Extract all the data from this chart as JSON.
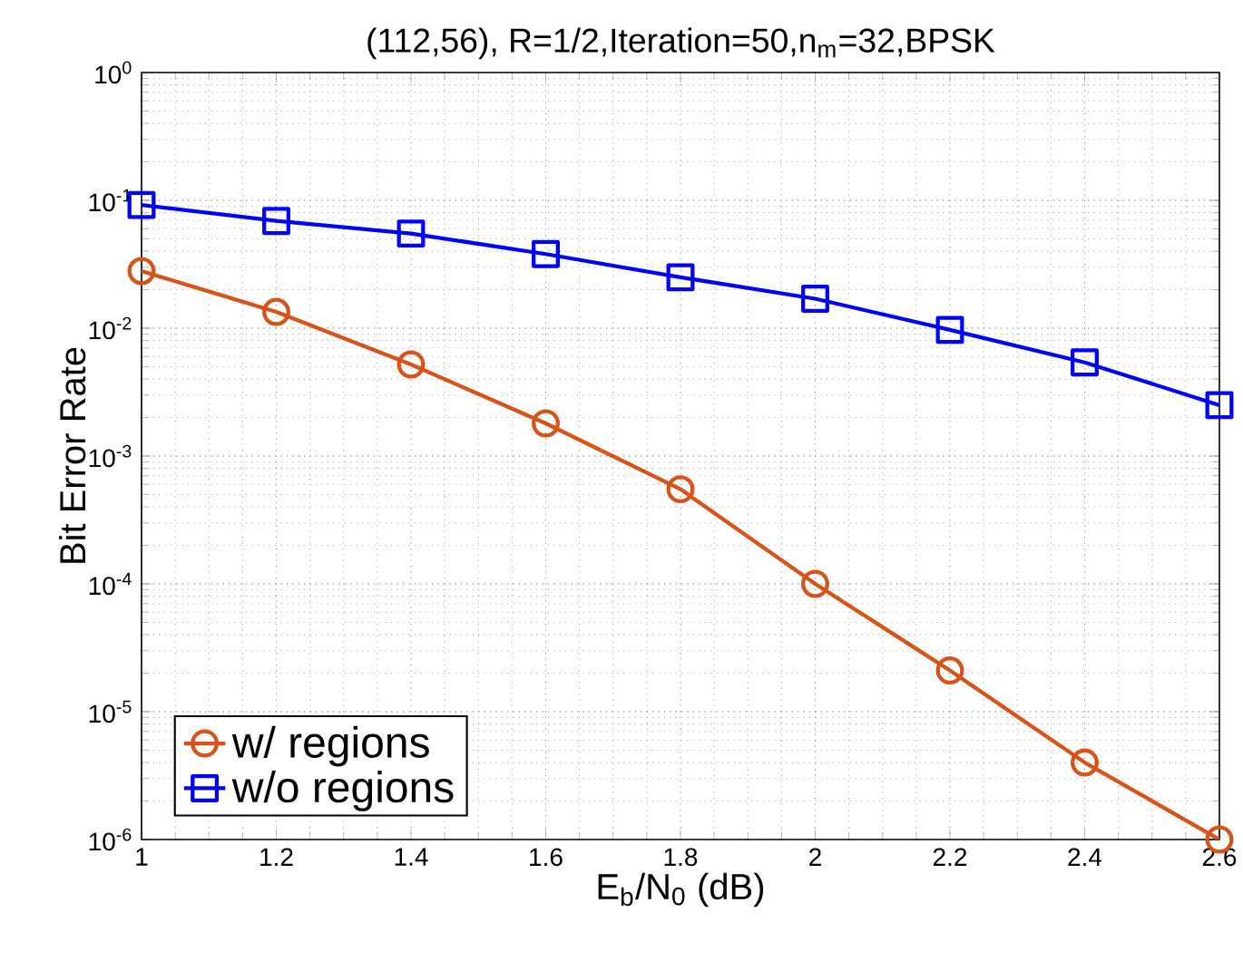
{
  "chart_data": {
    "type": "line",
    "title": "(112,56), R=1/2,Iteration=50,n$_{m}$=32,BPSK",
    "xlabel": "E$_{b}$/N$_{0}$ (dB)",
    "ylabel": "Bit Error Rate",
    "x": [
      1,
      1.2,
      1.4,
      1.6,
      1.8,
      2,
      2.2,
      2.4,
      2.6
    ],
    "series": [
      {
        "name": "w/ regions",
        "color": "#d95319",
        "marker": "circle",
        "values": [
          0.028,
          0.0134,
          0.0052,
          0.0018,
          0.00055,
          0.0001,
          2.1e-05,
          4e-06,
          1e-06
        ]
      },
      {
        "name": "w/o regions",
        "color": "#0000ff",
        "marker": "square",
        "values": [
          0.092,
          0.069,
          0.055,
          0.038,
          0.025,
          0.017,
          0.0097,
          0.0054,
          0.0025
        ]
      }
    ],
    "log": "y",
    "xlim": [
      1,
      2.6
    ],
    "ylim": [
      1e-06,
      1
    ],
    "xticks": [
      1,
      1.2,
      1.4,
      1.6,
      1.8,
      2,
      2.2,
      2.4,
      2.6
    ],
    "yticks": [
      {
        "value": 1e-06,
        "label": "10$^{-6}$"
      },
      {
        "value": 1e-05,
        "label": "10$^{-5}$"
      },
      {
        "value": 0.0001,
        "label": "10$^{-4}$"
      },
      {
        "value": 0.001,
        "label": "10$^{-3}$"
      },
      {
        "value": 0.01,
        "label": "10$^{-2}$"
      },
      {
        "value": 0.1,
        "label": "10$^{-1}$"
      },
      {
        "value": 1,
        "label": "10$^{0}$"
      }
    ],
    "grid": true,
    "legend": "bottom left",
    "line_style": "solid"
  }
}
